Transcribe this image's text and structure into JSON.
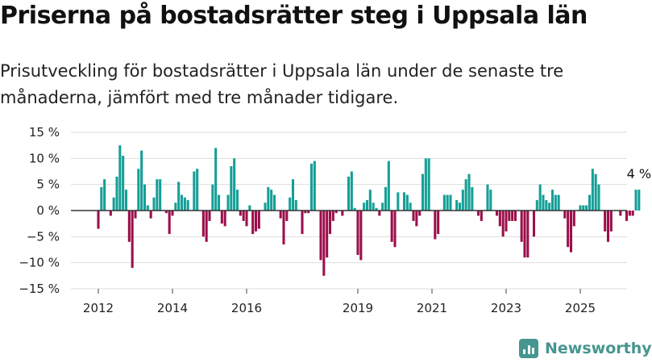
{
  "title": "Priserna på bostadsrätter steg i Uppsala län",
  "subtitle": "Prisutveckling för bostadsrätter i Uppsala län under de senaste tre månaderna, jämfört med tre månader tidigare.",
  "brand": "Newsworthy",
  "colors": {
    "positive": "#159f97",
    "negative": "#9b0f4b",
    "grid": "#dddddd",
    "zero": "#333333",
    "brand": "#45968f"
  },
  "chart_data": {
    "type": "bar",
    "title": "Priserna på bostadsrätter steg i Uppsala län",
    "xlabel": "",
    "ylabel": "",
    "ylim": [
      -15,
      15
    ],
    "yticks": [
      15,
      10,
      5,
      0,
      -5,
      -10,
      -15
    ],
    "ytick_labels": [
      "15 %",
      "10 %",
      "5 %",
      "0 %",
      "−5 %",
      "−10 %",
      "−15 %"
    ],
    "xticks": [
      2012,
      2014,
      2016,
      2019,
      2021,
      2023,
      2025
    ],
    "xtick_labels": [
      "2012",
      "2014",
      "2016",
      "2019",
      "2021",
      "2023",
      "2025"
    ],
    "grid": true,
    "legend": "none",
    "start": "2012-01",
    "frequency": "monthly",
    "values": [
      -3.5,
      4.5,
      6,
      0,
      -1,
      2.5,
      6.5,
      12.5,
      10.5,
      4,
      -6,
      -11,
      -1.5,
      8,
      11.5,
      5,
      1,
      -1.5,
      2.5,
      6,
      6,
      0,
      -0.5,
      -4.5,
      -1,
      1.5,
      5.5,
      3,
      2.5,
      2,
      0,
      7.5,
      8,
      0,
      -5,
      -6,
      -2,
      5,
      12,
      3,
      -2.5,
      -3,
      3,
      8.5,
      10,
      4,
      -1,
      -2,
      -3,
      1,
      -4.5,
      -4,
      -3.5,
      0,
      1.5,
      4.5,
      4,
      3,
      0,
      -1.5,
      -6.5,
      -2,
      2.5,
      6,
      2,
      0,
      -4.5,
      -0.5,
      -0.5,
      9,
      9.5,
      0,
      -9.5,
      -12.5,
      -9,
      -4.5,
      -2,
      -0.5,
      0,
      -1,
      0,
      6.5,
      7.5,
      0.5,
      -8.5,
      -9.5,
      1.5,
      2,
      4,
      1.5,
      0.5,
      -1,
      1.5,
      4.5,
      9.5,
      -6,
      -7,
      3.5,
      0,
      3.5,
      3,
      1.5,
      -2,
      -3,
      -1,
      7,
      10,
      10,
      0,
      -5.5,
      -4.5,
      0,
      3,
      3,
      3,
      0,
      2,
      1.5,
      4,
      6,
      7,
      4.5,
      0,
      -1,
      -2,
      0,
      5,
      4,
      0,
      -1,
      -3,
      -5,
      -4,
      -2,
      -2,
      -2,
      0,
      -6,
      -9,
      -9,
      0,
      -5,
      2,
      5,
      3,
      2,
      1.5,
      4,
      3,
      3,
      0,
      -1.5,
      -7,
      -8,
      -3,
      0,
      1,
      1,
      1,
      3,
      8,
      7,
      5,
      0,
      -4,
      -6,
      -4,
      0,
      0,
      -1,
      0,
      -2,
      -1,
      -1,
      4,
      4
    ],
    "annotations": [
      {
        "text": "4 %",
        "at": "last"
      }
    ]
  }
}
